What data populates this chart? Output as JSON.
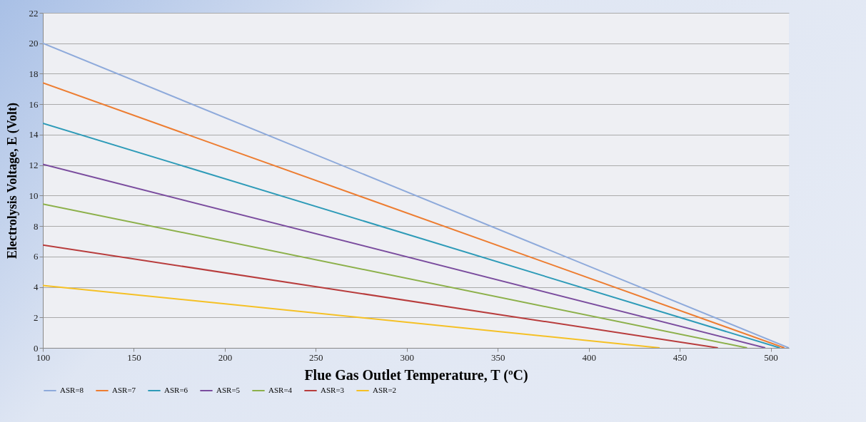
{
  "chart_data": {
    "type": "line",
    "xlabel": "Flue Gas Outlet Temperature, T (ºC)",
    "ylabel": "Electrolysis Voltage, E (Volt)",
    "xlim": [
      100,
      510
    ],
    "xticks": [
      100,
      150,
      200,
      250,
      300,
      350,
      400,
      450,
      500
    ],
    "ylim": [
      0,
      22
    ],
    "yticks": [
      0,
      2,
      4,
      6,
      8,
      10,
      12,
      14,
      16,
      18,
      20,
      22
    ],
    "grid": "y",
    "legend": "bottom",
    "marker": "none",
    "line_style": "solid",
    "series": [
      {
        "name": "ASR=8",
        "color": "#8eaadb",
        "x": [
          100,
          510
        ],
        "values": [
          20,
          0
        ]
      },
      {
        "name": "ASR=7",
        "color": "#ed7d31",
        "x": [
          100,
          507.5
        ],
        "values": [
          17.4,
          0
        ]
      },
      {
        "name": "ASR=6",
        "color": "#2e9bb8",
        "x": [
          100,
          505
        ],
        "values": [
          14.75,
          0
        ]
      },
      {
        "name": "ASR=5",
        "color": "#7a4c9e",
        "x": [
          100,
          497
        ],
        "values": [
          12.05,
          0
        ]
      },
      {
        "name": "ASR=4",
        "color": "#8cb04a",
        "x": [
          100,
          487
        ],
        "values": [
          9.45,
          0
        ]
      },
      {
        "name": "ASR=3",
        "color": "#b83c3c",
        "x": [
          100,
          471
        ],
        "values": [
          6.75,
          0
        ]
      },
      {
        "name": "ASR=2",
        "color": "#f5c024",
        "x": [
          100,
          439
        ],
        "values": [
          4.1,
          0
        ]
      }
    ]
  }
}
